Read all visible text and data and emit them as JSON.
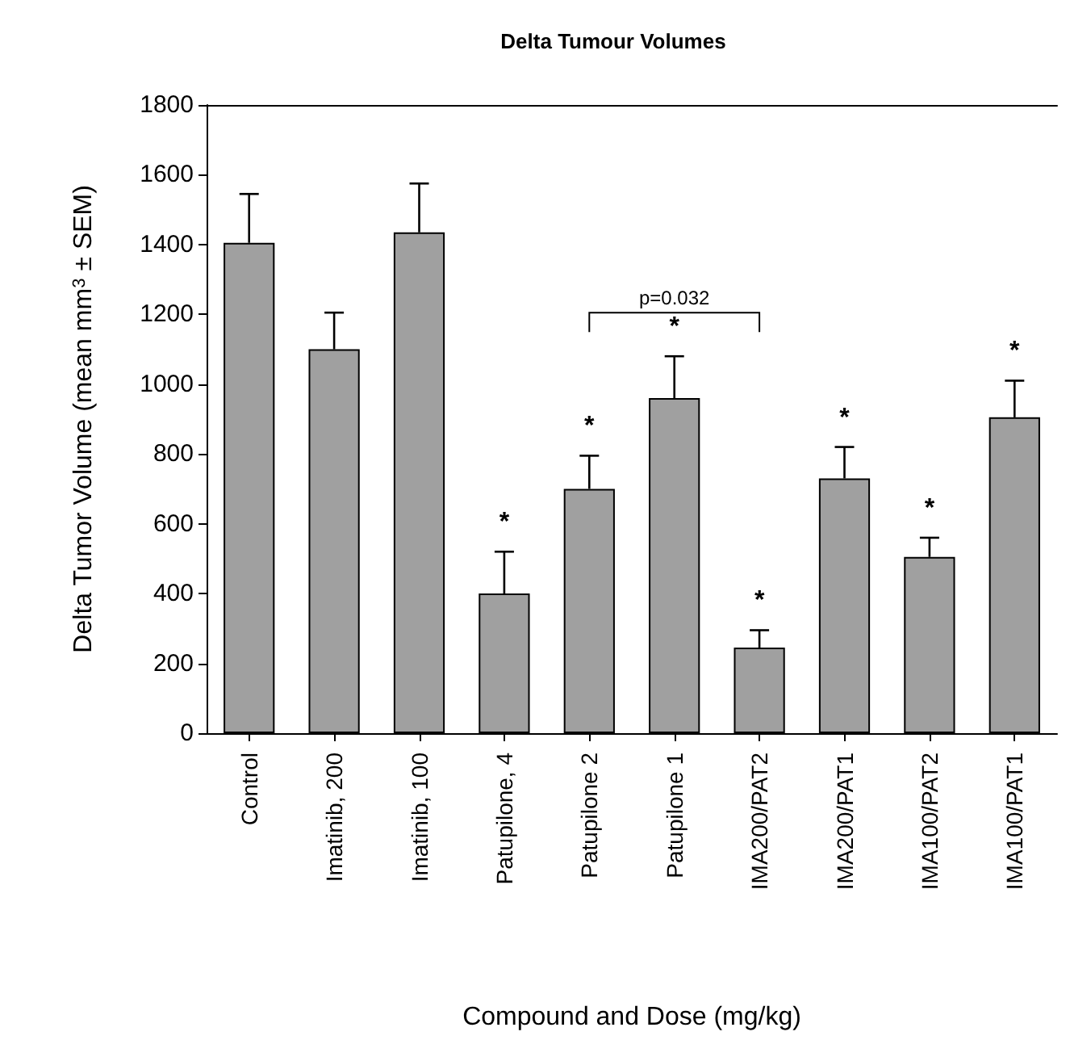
{
  "chart_data": {
    "type": "bar",
    "title": "Delta Tumour Volumes",
    "xlabel": "Compound and Dose (mg/kg)",
    "ylabel": "Delta Tumor Volume (mean mm$^{3}$ ± SEM)",
    "categories": [
      "Control",
      "Imatinib, 200",
      "Imatinib, 100",
      "Patupilone, 4",
      "Patupilone 2",
      "Patupilone 1",
      "IMA200/PAT2",
      "IMA200/PAT1",
      "IMA100/PAT2",
      "IMA100/PAT1"
    ],
    "values": [
      1405,
      1100,
      1435,
      400,
      700,
      960,
      245,
      730,
      505,
      905
    ],
    "errors": [
      [
        1405,
        1545
      ],
      [
        1100,
        1205
      ],
      [
        1435,
        1575
      ],
      [
        400,
        520
      ],
      [
        700,
        795
      ],
      [
        960,
        1080
      ],
      [
        245,
        295
      ],
      [
        730,
        820
      ],
      [
        505,
        560
      ],
      [
        905,
        1010
      ]
    ],
    "color": "#a0a0a0",
    "ylim": [
      0,
      1800
    ],
    "yticks": [
      0,
      200,
      400,
      600,
      800,
      1000,
      1200,
      1400,
      1600,
      1800
    ],
    "grid": false,
    "annotations": [
      {
        "text": "*",
        "x": "Patupilone, 4",
        "y": 520
      },
      {
        "text": "*",
        "x": "Patupilone 2",
        "y": 795
      },
      {
        "text": "*",
        "x": "Patupilone 1",
        "y": 1080
      },
      {
        "text": "*",
        "x": "IMA200/PAT2",
        "y": 295
      },
      {
        "text": "*",
        "x": "IMA200/PAT1",
        "y": 820
      },
      {
        "text": "*",
        "x": "IMA100/PAT2",
        "y": 560
      },
      {
        "text": "*",
        "x": "IMA100/PAT1",
        "y": 1010
      },
      "p=0.032"
    ]
  }
}
